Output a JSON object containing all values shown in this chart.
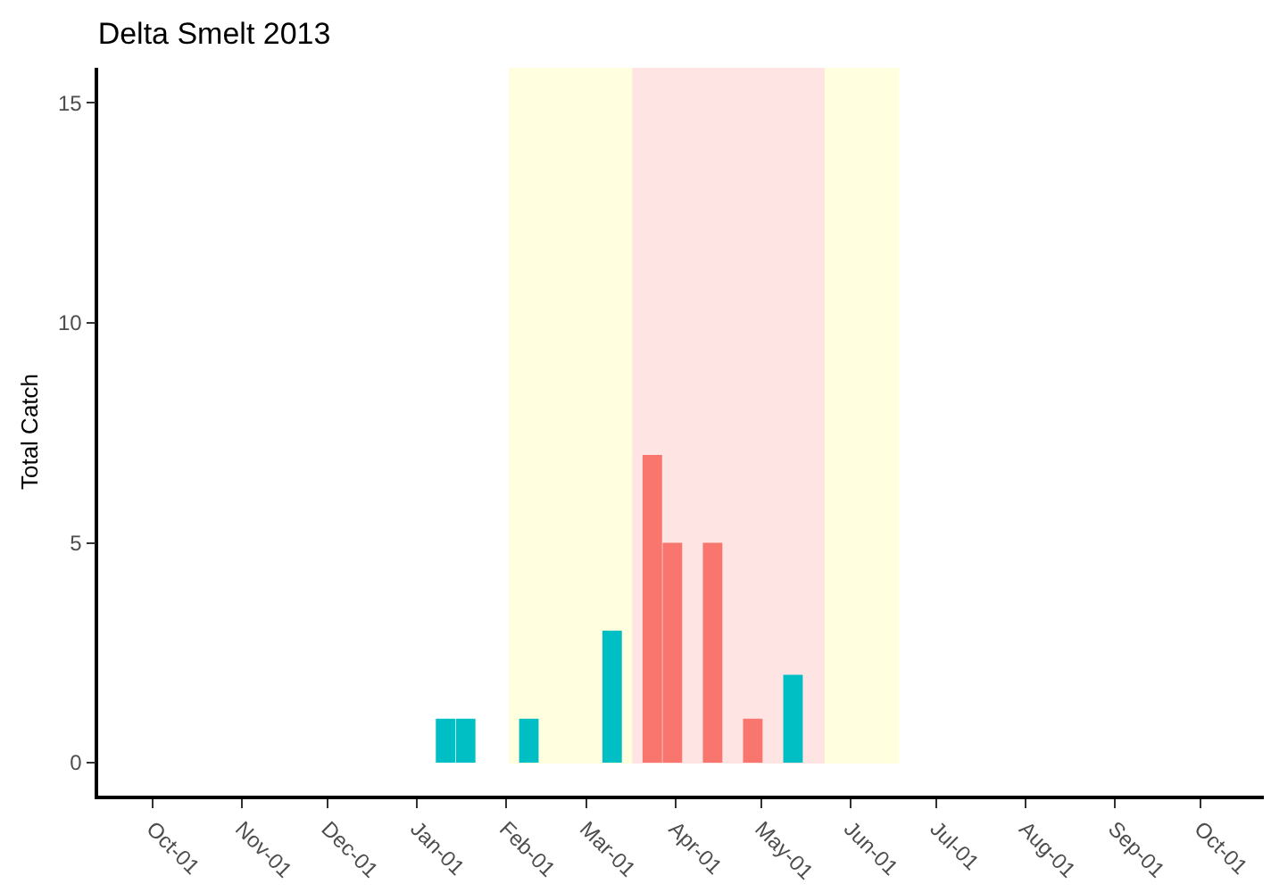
{
  "chart_data": {
    "type": "bar",
    "title": "Delta Smelt 2013",
    "ylabel": "Total Catch",
    "series": [
      {
        "color": "#00bfc4",
        "x": [
          "2013-01-11",
          "2013-01-18",
          "2013-02-09",
          "2013-03-10",
          "2013-05-12"
        ],
        "values": [
          1,
          1,
          1,
          3,
          2
        ]
      },
      {
        "color": "#f8766d",
        "x": [
          "2013-03-24",
          "2013-03-31",
          "2013-04-14",
          "2013-04-28"
        ],
        "values": [
          7,
          5,
          5,
          1
        ]
      }
    ],
    "bands": [
      {
        "axis": "x",
        "from": "2013-02-02",
        "to": "2013-06-18",
        "color": "#ffffe0"
      },
      {
        "axis": "x",
        "from": "2013-03-17",
        "to": "2013-05-23",
        "color": "#ffe4e4"
      }
    ],
    "xlim": [
      "2012-09-12",
      "2013-10-23"
    ],
    "xticks": [
      {
        "value": "2012-10-01",
        "label": "Oct-01"
      },
      {
        "value": "2012-11-01",
        "label": "Nov-01"
      },
      {
        "value": "2012-12-01",
        "label": "Dec-01"
      },
      {
        "value": "2013-01-01",
        "label": "Jan-01"
      },
      {
        "value": "2013-02-01",
        "label": "Feb-01"
      },
      {
        "value": "2013-03-01",
        "label": "Mar-01"
      },
      {
        "value": "2013-04-01",
        "label": "Apr-01"
      },
      {
        "value": "2013-05-01",
        "label": "May-01"
      },
      {
        "value": "2013-06-01",
        "label": "Jun-01"
      },
      {
        "value": "2013-07-01",
        "label": "Jul-01"
      },
      {
        "value": "2013-08-01",
        "label": "Aug-01"
      },
      {
        "value": "2013-09-01",
        "label": "Sep-01"
      },
      {
        "value": "2013-10-01",
        "label": "Oct-01"
      }
    ],
    "ylim": [
      -0.75,
      15.8
    ],
    "yticks": [
      0,
      5,
      10,
      15
    ],
    "grid": false
  }
}
